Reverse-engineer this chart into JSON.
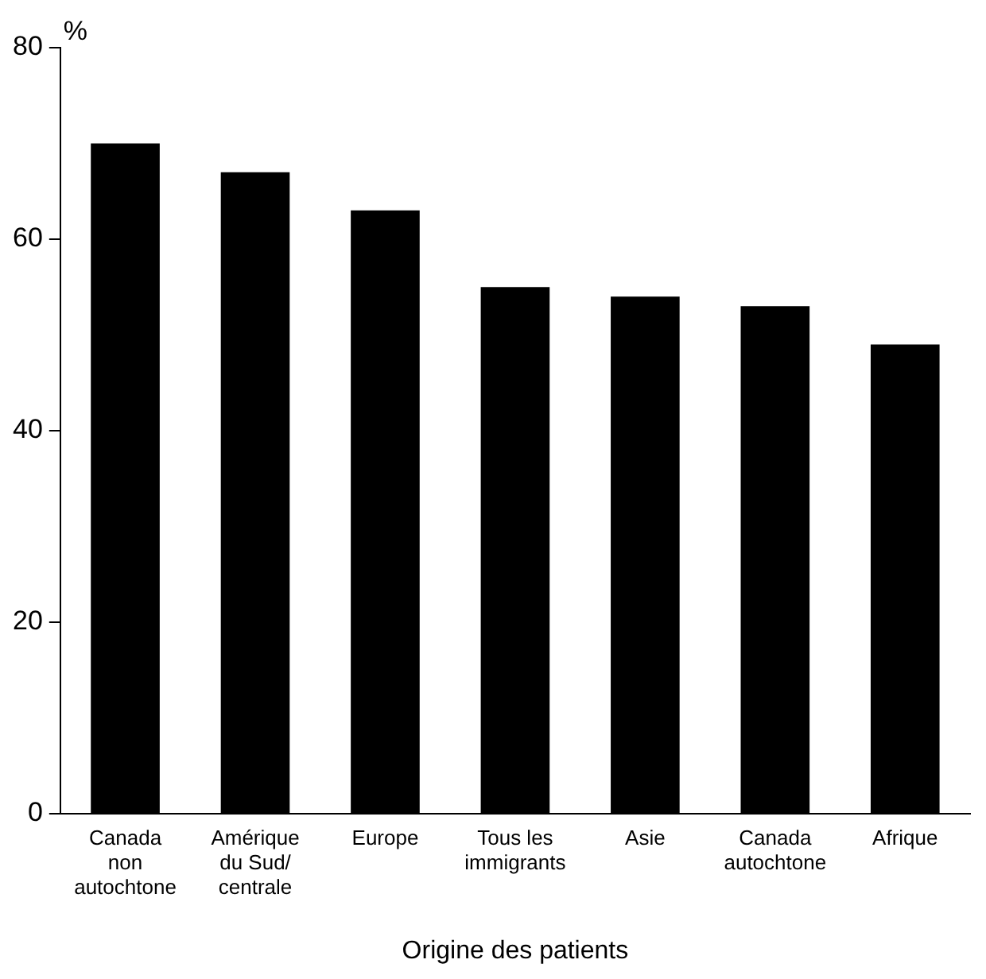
{
  "chart_data": {
    "type": "bar",
    "xlabel": "Origine des patients",
    "ylabel": "%",
    "categories": [
      "Canada\nnon\nautochtone",
      "Amérique\ndu Sud/\ncentrale",
      "Europe",
      "Tous les\nimmigrants",
      "Asie",
      "Canada\nautochtone",
      "Afrique"
    ],
    "values": [
      70,
      67,
      63,
      55,
      54,
      53,
      49
    ],
    "color": "#000000",
    "ylim": [
      0,
      80
    ],
    "yticks": [
      0,
      20,
      40,
      60,
      80
    ],
    "grid": false,
    "legend": false
  }
}
